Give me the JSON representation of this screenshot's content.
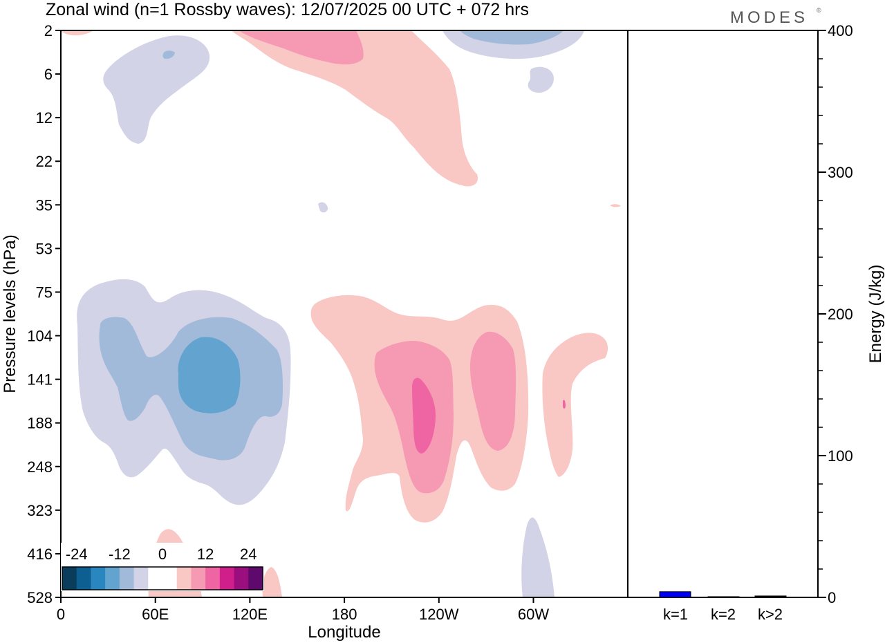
{
  "title": "Zonal wind (n=1 Rossby waves):  12/07/2025  00 UTC  + 072 hrs",
  "brand": "MODES",
  "brand_mark": "©",
  "colors": {
    "neg": [
      "#0a3c5c",
      "#0d5f92",
      "#2a86bf",
      "#62a4cf",
      "#a2bada",
      "#d2d3e6"
    ],
    "zero": "#ffffff",
    "pos": [
      "#f9c8c5",
      "#f69ab4",
      "#ef64a3",
      "#d01f8a",
      "#9a0f7d",
      "#5e0a6c"
    ],
    "bar": "#0000ee"
  },
  "chart_data": [
    {
      "type": "heatmap",
      "xlabel": "Longitude",
      "ylabel": "Pressure levels (hPa)",
      "x_ticks": [
        "0",
        "60E",
        "120E",
        "180",
        "120W",
        "60W"
      ],
      "y_levels": [
        "2",
        "6",
        "12",
        "22",
        "35",
        "53",
        "75",
        "104",
        "141",
        "188",
        "248",
        "323",
        "416",
        "528"
      ],
      "colorbar_labels": [
        "-24",
        "-12",
        "0",
        "12",
        "24"
      ],
      "colorbar_levels": [
        -30,
        -25,
        -20,
        -15,
        -10,
        -5,
        0,
        5,
        10,
        15,
        20,
        25,
        30
      ],
      "contour_fill_levels": [
        {
          "value": -5,
          "color_index": "neg5"
        },
        {
          "value": -10,
          "color_index": "neg4"
        },
        {
          "value": -15,
          "color_index": "neg3"
        },
        {
          "value": 5,
          "color_index": "pos0"
        },
        {
          "value": 10,
          "color_index": "pos1"
        },
        {
          "value": 15,
          "color_index": "pos2"
        }
      ]
    },
    {
      "type": "bar",
      "categories": [
        "k=1",
        "k=2",
        "k>2"
      ],
      "values": [
        4,
        0.5,
        1
      ],
      "ylabel": "Energy (J/kg)",
      "ylim": [
        0,
        400
      ],
      "y_ticks": [
        "0",
        "100",
        "200",
        "300",
        "400"
      ]
    }
  ]
}
